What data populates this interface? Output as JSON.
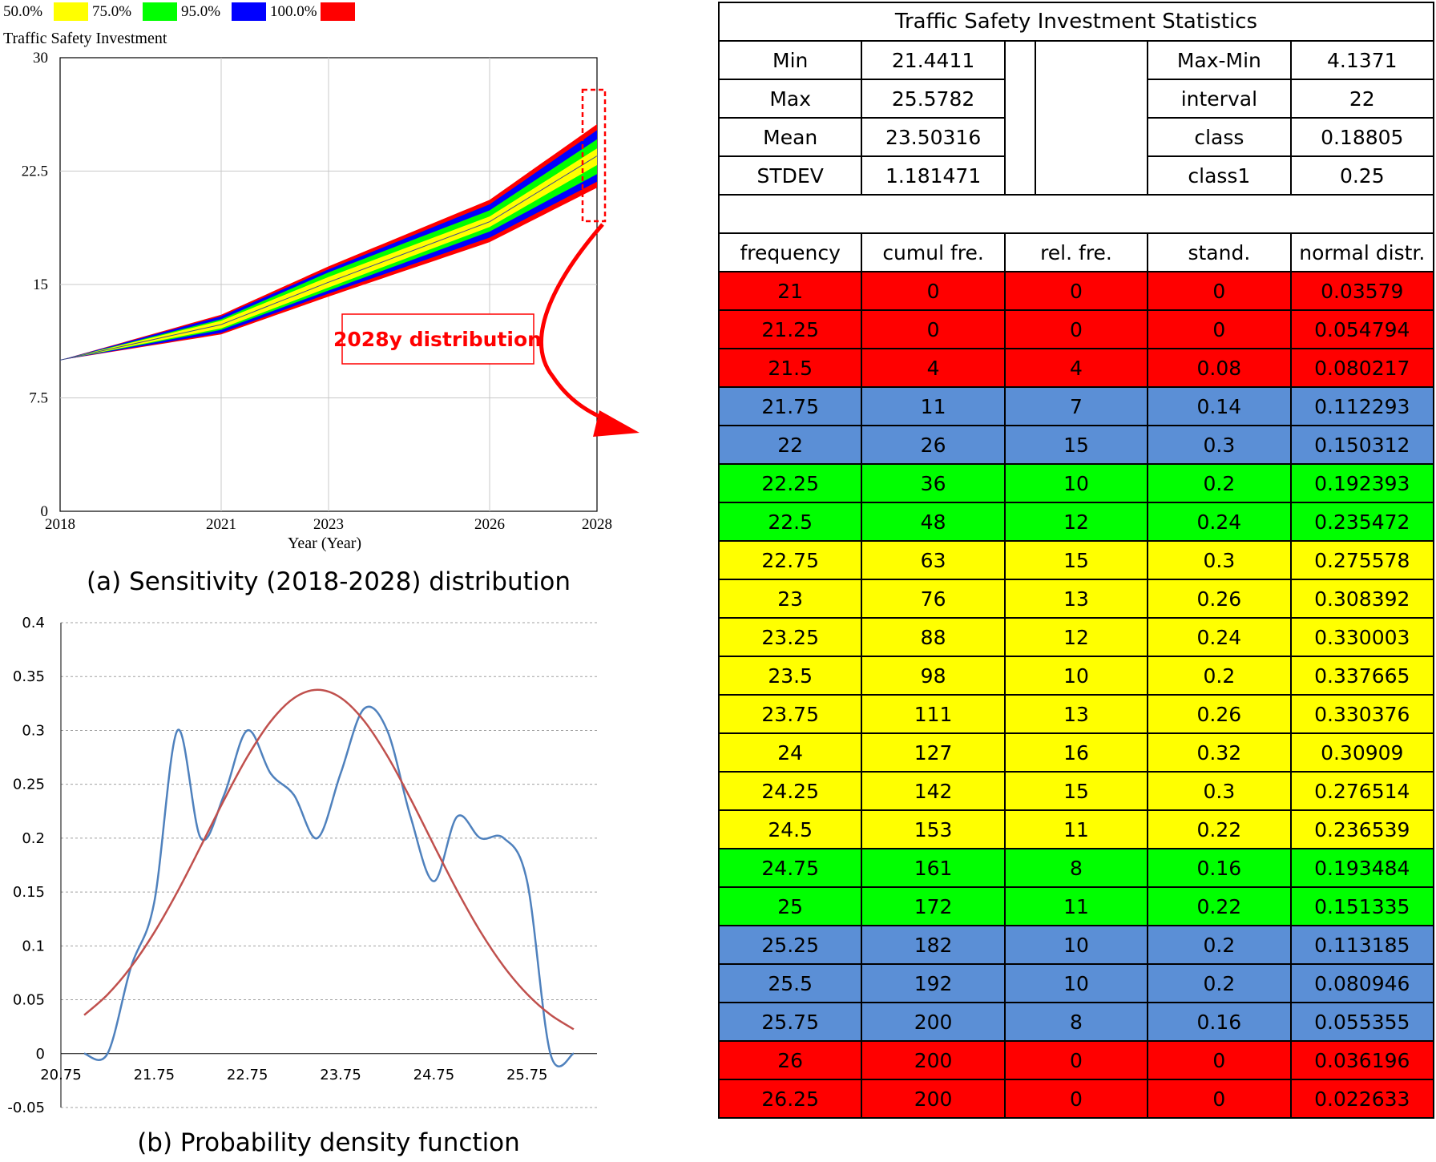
{
  "panel_a": {
    "caption": "(a) Sensitivity (2018-2028) distribution",
    "annotation": "2028y distribution"
  },
  "panel_b": {
    "caption": "(b) Probability density function"
  },
  "colors": {
    "band_50": "#ffff00",
    "band_75": "#00ff00",
    "band_95": "#0000ff",
    "band_100": "#ff0000",
    "row_red": "#ff0000",
    "row_blue": "#5b8fd6",
    "row_green": "#00ff00",
    "row_yellow": "#ffff00",
    "pdf_empirical": "#4f81bd",
    "pdf_normal": "#c0504d",
    "annotation": "#ff0000"
  },
  "chart_data": [
    {
      "type": "area",
      "title": "Traffic Safety Investment",
      "xlabel": "Year (Year)",
      "ylabel": "",
      "xlim": [
        2018,
        2028
      ],
      "ylim": [
        0,
        30
      ],
      "x_ticks": [
        "2018",
        "2021",
        "2023",
        "2026",
        "2028"
      ],
      "y_ticks": [
        "0",
        "7.5",
        "15",
        "22.5",
        "30"
      ],
      "grid": true,
      "legend": [
        "50.0%",
        "75.0%",
        "95.0%",
        "100.0%"
      ],
      "legend_position": "top-left",
      "series": [
        {
          "name": "100.0%",
          "x": [
            2018,
            2021,
            2023,
            2026,
            2028
          ],
          "low": [
            10,
            11.7,
            14.2,
            17.8,
            21.4
          ],
          "high": [
            10,
            13.0,
            16.2,
            20.6,
            25.6
          ]
        },
        {
          "name": "95.0%",
          "x": [
            2018,
            2021,
            2023,
            2026,
            2028
          ],
          "low": [
            10,
            11.8,
            14.4,
            18.1,
            21.8
          ],
          "high": [
            10,
            12.9,
            16.0,
            20.3,
            25.2
          ]
        },
        {
          "name": "75.0%",
          "x": [
            2018,
            2021,
            2023,
            2026,
            2028
          ],
          "low": [
            10,
            12.0,
            14.6,
            18.5,
            22.3
          ],
          "high": [
            10,
            12.7,
            15.8,
            19.9,
            24.6
          ]
        },
        {
          "name": "50.0%",
          "x": [
            2018,
            2021,
            2023,
            2026,
            2028
          ],
          "low": [
            10,
            12.1,
            14.8,
            18.8,
            22.9
          ],
          "high": [
            10,
            12.6,
            15.5,
            19.5,
            24.0
          ]
        }
      ],
      "median": {
        "x": [
          2018,
          2021,
          2023,
          2026,
          2028
        ],
        "y": [
          10,
          12.35,
          15.15,
          19.15,
          23.5
        ]
      }
    },
    {
      "type": "line",
      "title": "",
      "xlabel": "",
      "ylabel": "",
      "xlim": [
        20.75,
        26.5
      ],
      "ylim": [
        -0.05,
        0.4
      ],
      "x_ticks": [
        "20.75",
        "21.75",
        "22.75",
        "23.75",
        "24.75",
        "25.75"
      ],
      "y_ticks": [
        "0.4",
        "0.35",
        "0.3",
        "0.25",
        "0.2",
        "0.15",
        "0.1",
        "0.05",
        "0",
        "-0.05"
      ],
      "grid": true,
      "series": [
        {
          "x": [
            21,
            21.25,
            21.5,
            21.75,
            22,
            22.25,
            22.5,
            22.75,
            23,
            23.25,
            23.5,
            23.75,
            24,
            24.25,
            24.5,
            24.75,
            25,
            25.25,
            25.5,
            25.75,
            26,
            26.25
          ],
          "values": [
            0,
            0,
            0.08,
            0.14,
            0.3,
            0.2,
            0.24,
            0.3,
            0.26,
            0.24,
            0.2,
            0.26,
            0.32,
            0.3,
            0.22,
            0.16,
            0.22,
            0.2,
            0.2,
            0.16,
            0,
            0
          ]
        },
        {
          "x": [
            21,
            21.25,
            21.5,
            21.75,
            22,
            22.25,
            22.5,
            22.75,
            23,
            23.25,
            23.5,
            23.75,
            24,
            24.25,
            24.5,
            24.75,
            25,
            25.25,
            25.5,
            25.75,
            26,
            26.25
          ],
          "values": [
            0.03579,
            0.054794,
            0.080217,
            0.112293,
            0.150312,
            0.192393,
            0.235472,
            0.275578,
            0.308392,
            0.330003,
            0.337665,
            0.330376,
            0.30909,
            0.276514,
            0.236539,
            0.193484,
            0.151335,
            0.113185,
            0.080946,
            0.055355,
            0.036196,
            0.022633
          ]
        }
      ]
    },
    {
      "type": "table",
      "title": "Traffic Safety Investment Statistics",
      "summary": [
        [
          "Min",
          "21.4411",
          "Max-Min",
          "4.1371"
        ],
        [
          "Max",
          "25.5782",
          "interval",
          "22"
        ],
        [
          "Mean",
          "23.50316",
          "class",
          "0.18805"
        ],
        [
          "STDEV",
          "1.181471",
          "class1",
          "0.25"
        ]
      ],
      "headers": [
        "frequency",
        "cumul fre.",
        "rel. fre.",
        "stand.",
        "normal distr."
      ],
      "rows": [
        {
          "color": "red",
          "cells": [
            "21",
            "0",
            "0",
            "0",
            "0.03579"
          ]
        },
        {
          "color": "red",
          "cells": [
            "21.25",
            "0",
            "0",
            "0",
            "0.054794"
          ]
        },
        {
          "color": "red",
          "cells": [
            "21.5",
            "4",
            "4",
            "0.08",
            "0.080217"
          ]
        },
        {
          "color": "blue",
          "cells": [
            "21.75",
            "11",
            "7",
            "0.14",
            "0.112293"
          ]
        },
        {
          "color": "blue",
          "cells": [
            "22",
            "26",
            "15",
            "0.3",
            "0.150312"
          ]
        },
        {
          "color": "green",
          "cells": [
            "22.25",
            "36",
            "10",
            "0.2",
            "0.192393"
          ]
        },
        {
          "color": "green",
          "cells": [
            "22.5",
            "48",
            "12",
            "0.24",
            "0.235472"
          ]
        },
        {
          "color": "yellow",
          "cells": [
            "22.75",
            "63",
            "15",
            "0.3",
            "0.275578"
          ]
        },
        {
          "color": "yellow",
          "cells": [
            "23",
            "76",
            "13",
            "0.26",
            "0.308392"
          ]
        },
        {
          "color": "yellow",
          "cells": [
            "23.25",
            "88",
            "12",
            "0.24",
            "0.330003"
          ]
        },
        {
          "color": "yellow",
          "cells": [
            "23.5",
            "98",
            "10",
            "0.2",
            "0.337665"
          ]
        },
        {
          "color": "yellow",
          "cells": [
            "23.75",
            "111",
            "13",
            "0.26",
            "0.330376"
          ]
        },
        {
          "color": "yellow",
          "cells": [
            "24",
            "127",
            "16",
            "0.32",
            "0.30909"
          ]
        },
        {
          "color": "yellow",
          "cells": [
            "24.25",
            "142",
            "15",
            "0.3",
            "0.276514"
          ]
        },
        {
          "color": "yellow",
          "cells": [
            "24.5",
            "153",
            "11",
            "0.22",
            "0.236539"
          ]
        },
        {
          "color": "green",
          "cells": [
            "24.75",
            "161",
            "8",
            "0.16",
            "0.193484"
          ]
        },
        {
          "color": "green",
          "cells": [
            "25",
            "172",
            "11",
            "0.22",
            "0.151335"
          ]
        },
        {
          "color": "blue",
          "cells": [
            "25.25",
            "182",
            "10",
            "0.2",
            "0.113185"
          ]
        },
        {
          "color": "blue",
          "cells": [
            "25.5",
            "192",
            "10",
            "0.2",
            "0.080946"
          ]
        },
        {
          "color": "blue",
          "cells": [
            "25.75",
            "200",
            "8",
            "0.16",
            "0.055355"
          ]
        },
        {
          "color": "red",
          "cells": [
            "26",
            "200",
            "0",
            "0",
            "0.036196"
          ]
        },
        {
          "color": "red",
          "cells": [
            "26.25",
            "200",
            "0",
            "0",
            "0.022633"
          ]
        }
      ]
    }
  ]
}
